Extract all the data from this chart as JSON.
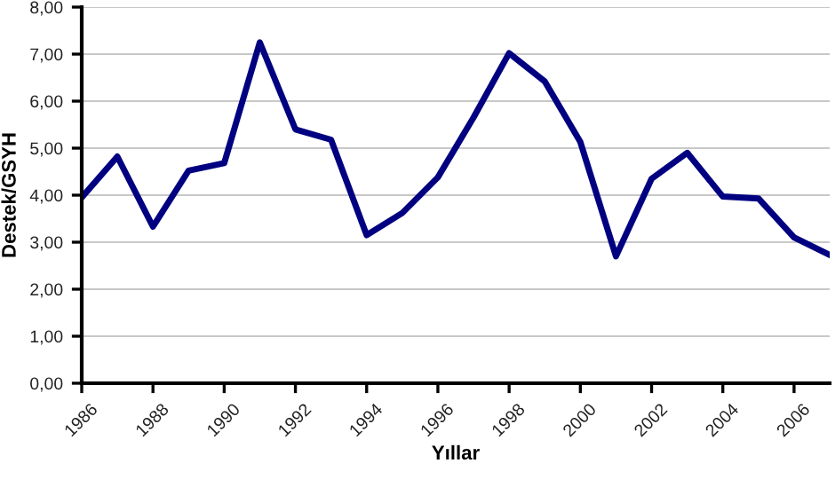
{
  "chart_data": {
    "type": "line",
    "xlabel": "Yıllar",
    "ylabel": "Destek/GSYH",
    "x": [
      1986,
      1987,
      1988,
      1989,
      1990,
      1991,
      1992,
      1993,
      1994,
      1995,
      1996,
      1997,
      1998,
      1999,
      2000,
      2001,
      2002,
      2003,
      2004,
      2005,
      2006,
      2007
    ],
    "series": [
      {
        "color": "#000080",
        "values": [
          3.95,
          4.82,
          3.33,
          4.52,
          4.68,
          7.25,
          5.4,
          5.18,
          3.15,
          3.62,
          4.38,
          5.65,
          7.02,
          6.42,
          5.13,
          2.7,
          4.35,
          4.9,
          3.97,
          3.93,
          3.1,
          2.73
        ]
      }
    ],
    "xlim": [
      1986,
      2007
    ],
    "xticks": [
      1986,
      1988,
      1990,
      1992,
      1994,
      1996,
      1998,
      2000,
      2002,
      2004,
      2006
    ],
    "ylim": [
      0,
      8
    ],
    "yticks": [
      {
        "value": 0,
        "label": "0,00"
      },
      {
        "value": 1,
        "label": "1,00"
      },
      {
        "value": 2,
        "label": "2,00"
      },
      {
        "value": 3,
        "label": "3,00"
      },
      {
        "value": 4,
        "label": "4,00"
      },
      {
        "value": 5,
        "label": "5,00"
      },
      {
        "value": 6,
        "label": "6,00"
      },
      {
        "value": 7,
        "label": "7,00"
      },
      {
        "value": 8,
        "label": "8,00"
      }
    ],
    "grid": "y",
    "marker": "none",
    "line_style": "solid"
  }
}
